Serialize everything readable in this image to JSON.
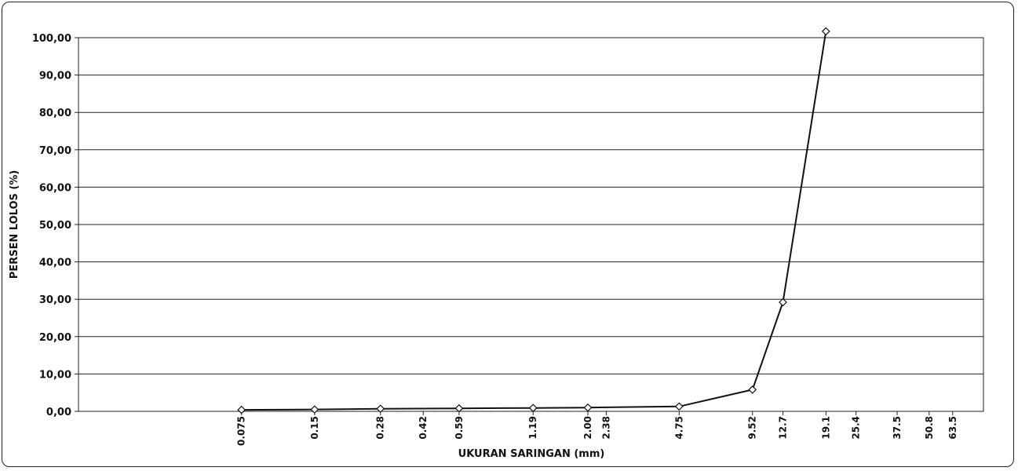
{
  "chart_data": {
    "type": "line",
    "title": "",
    "xlabel": "UKURAN SARINGAN (mm)",
    "ylabel": "PERSEN LOLOS (%)",
    "x_scale": "log",
    "ylim": [
      0,
      100
    ],
    "y_ticks": [
      "0,00",
      "10,00",
      "20,00",
      "30,00",
      "40,00",
      "50,00",
      "60,00",
      "70,00",
      "80,00",
      "90,00",
      "100,00"
    ],
    "x_tick_labels": [
      {
        "label": "0.075",
        "value": 0.075
      },
      {
        "label": "0.15",
        "value": 0.15
      },
      {
        "label": "0.28",
        "value": 0.28
      },
      {
        "label": "0.42",
        "value": 0.42
      },
      {
        "label": "0.59",
        "value": 0.59
      },
      {
        "label": "1.19",
        "value": 1.19
      },
      {
        "label": "2.00",
        "value": 2.0
      },
      {
        "label": "2.38",
        "value": 2.38
      },
      {
        "label": "4.75",
        "value": 4.75
      },
      {
        "label": "9.52",
        "value": 9.52
      },
      {
        "label": "12.7",
        "value": 12.7
      },
      {
        "label": "19.1",
        "value": 19.1
      },
      {
        "label": "25.4",
        "value": 25.4
      },
      {
        "label": "37.5",
        "value": 37.5
      },
      {
        "label": "50.8",
        "value": 50.8
      },
      {
        "label": "63.5",
        "value": 63.5
      }
    ],
    "grid": true,
    "series": [
      {
        "points": [
          {
            "x": 0.075,
            "y": 0.4
          },
          {
            "x": 0.15,
            "y": 0.5
          },
          {
            "x": 0.28,
            "y": 0.7
          },
          {
            "x": 0.59,
            "y": 0.8
          },
          {
            "x": 1.19,
            "y": 0.9
          },
          {
            "x": 2.0,
            "y": 1.0
          },
          {
            "x": 4.75,
            "y": 1.3
          },
          {
            "x": 9.52,
            "y": 5.8
          },
          {
            "x": 12.7,
            "y": 29.2
          },
          {
            "x": 19.1,
            "y": 101.7
          }
        ]
      }
    ],
    "colors": {
      "line": "#111111",
      "grid": "#222222",
      "marker_fill": "#ffffff"
    }
  }
}
